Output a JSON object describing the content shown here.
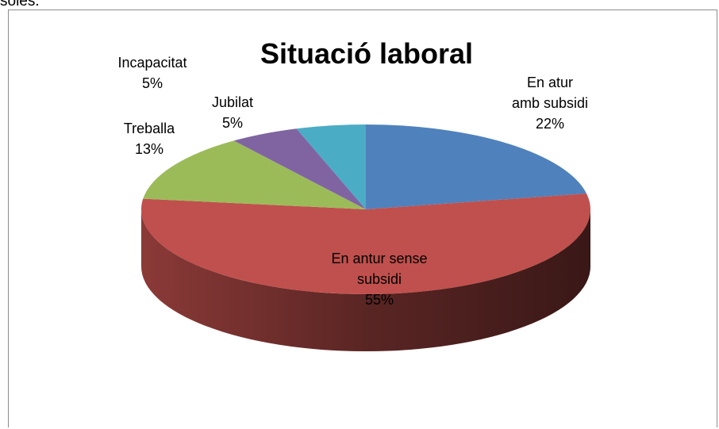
{
  "top_text": "soles.",
  "chart_data": {
    "type": "pie3d",
    "title": "Situació laboral",
    "categories": [
      "En atur\namb subsidi",
      "En antur sense\nsubsidi",
      "Treballa",
      "Jubilat",
      "Incapacitat"
    ],
    "values": [
      22,
      55,
      13,
      5,
      5
    ],
    "value_labels": [
      "22%",
      "55%",
      "13%",
      "5%",
      "5%"
    ],
    "colors": [
      "#4f81bd",
      "#c0504d",
      "#9bbb59",
      "#8064a2",
      "#4bacc6"
    ]
  }
}
